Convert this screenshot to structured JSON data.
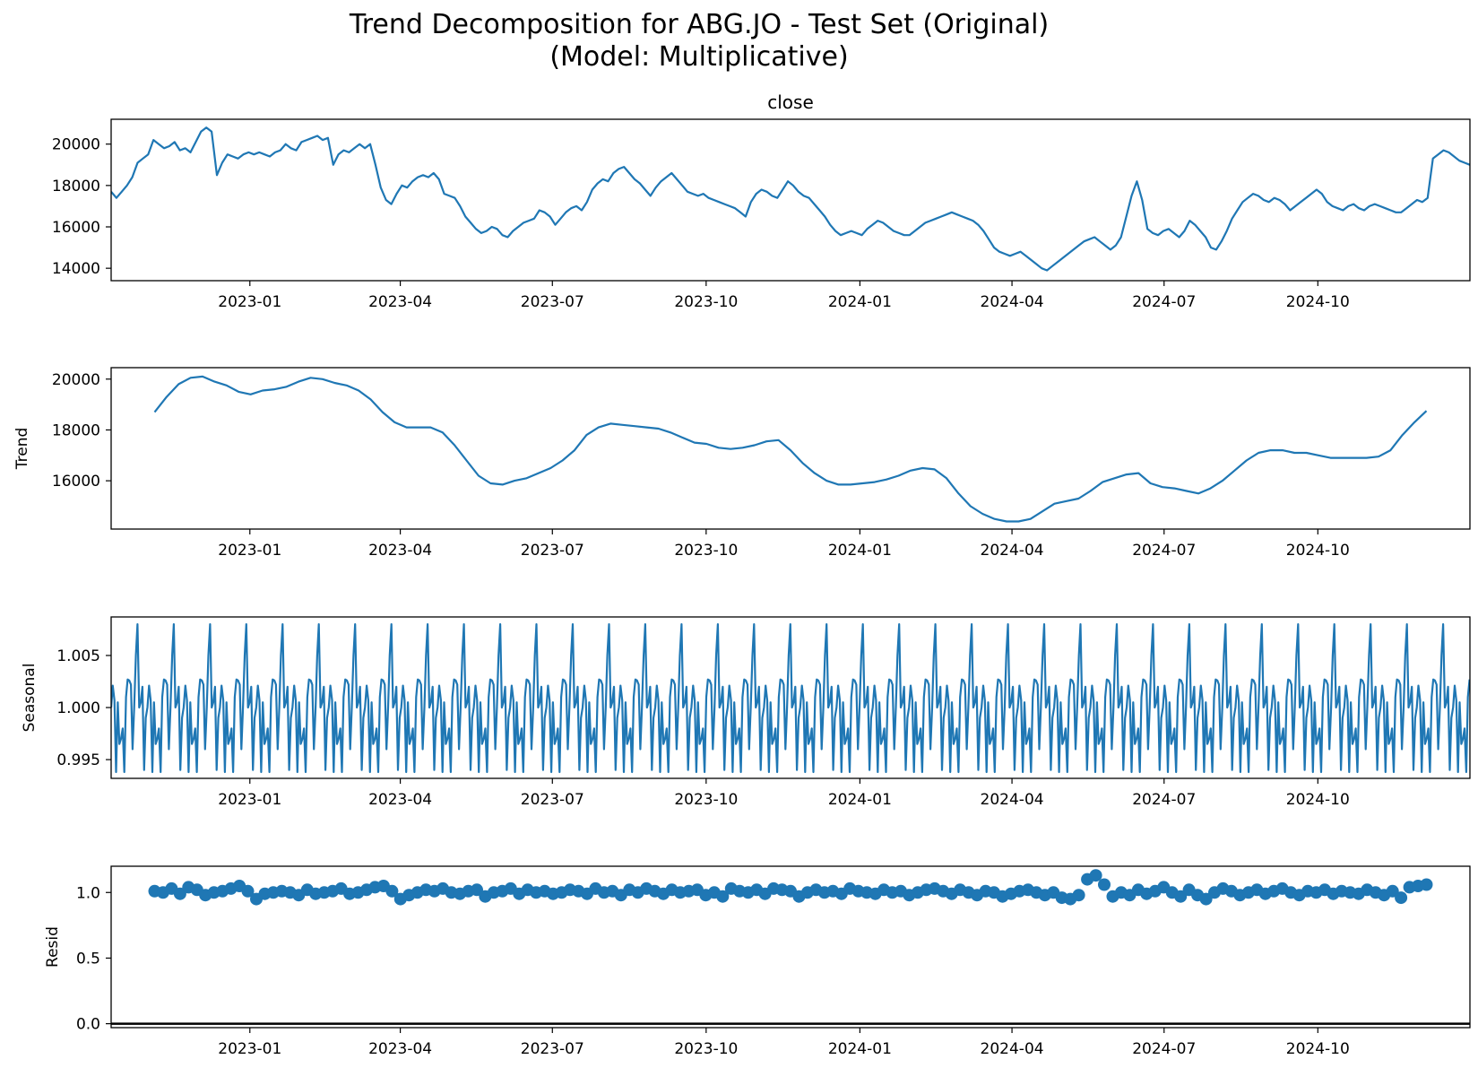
{
  "figure": {
    "title_line1": "Trend Decomposition for ABG.JO - Test Set (Original)",
    "title_line2": "(Model: Multiplicative)"
  },
  "colors": {
    "series": "#1f77b4",
    "axis": "#000000",
    "zero_line": "#000000"
  },
  "chart_data": [
    {
      "type": "line",
      "title": "close",
      "ylabel": "",
      "xlim": [
        "2022-10-10",
        "2024-12-31"
      ],
      "ylim": [
        13400,
        21200
      ],
      "yticks": [
        14000,
        16000,
        18000,
        20000
      ],
      "xticks": [
        "2023-01",
        "2023-04",
        "2023-07",
        "2023-10",
        "2024-01",
        "2024-04",
        "2024-07",
        "2024-10"
      ],
      "series": [
        {
          "x_start": "2022-10-10",
          "x_end": "2024-12-31",
          "values": [
            17700,
            17400,
            17700,
            18000,
            18400,
            19100,
            19300,
            19500,
            20200,
            20000,
            19800,
            19900,
            20100,
            19700,
            19800,
            19600,
            20100,
            20600,
            20800,
            20600,
            18500,
            19100,
            19500,
            19400,
            19300,
            19500,
            19600,
            19500,
            19600,
            19500,
            19400,
            19600,
            19700,
            20000,
            19800,
            19700,
            20100,
            20200,
            20300,
            20400,
            20200,
            20300,
            19000,
            19500,
            19700,
            19600,
            19800,
            20000,
            19800,
            20000,
            19000,
            17900,
            17300,
            17100,
            17600,
            18000,
            17900,
            18200,
            18400,
            18500,
            18400,
            18600,
            18300,
            17600,
            17500,
            17400,
            17000,
            16500,
            16200,
            15900,
            15700,
            15800,
            16000,
            15900,
            15600,
            15500,
            15800,
            16000,
            16200,
            16300,
            16400,
            16800,
            16700,
            16500,
            16100,
            16400,
            16700,
            16900,
            17000,
            16800,
            17200,
            17800,
            18100,
            18300,
            18200,
            18600,
            18800,
            18900,
            18600,
            18300,
            18100,
            17800,
            17500,
            17900,
            18200,
            18400,
            18600,
            18300,
            18000,
            17700,
            17600,
            17500,
            17600,
            17400,
            17300,
            17200,
            17100,
            17000,
            16900,
            16700,
            16500,
            17200,
            17600,
            17800,
            17700,
            17500,
            17400,
            17800,
            18200,
            18000,
            17700,
            17500,
            17400,
            17100,
            16800,
            16500,
            16100,
            15800,
            15600,
            15700,
            15800,
            15700,
            15600,
            15900,
            16100,
            16300,
            16200,
            16000,
            15800,
            15700,
            15600,
            15600,
            15800,
            16000,
            16200,
            16300,
            16400,
            16500,
            16600,
            16700,
            16600,
            16500,
            16400,
            16300,
            16100,
            15800,
            15400,
            15000,
            14800,
            14700,
            14600,
            14700,
            14800,
            14600,
            14400,
            14200,
            14000,
            13900,
            14100,
            14300,
            14500,
            14700,
            14900,
            15100,
            15300,
            15400,
            15500,
            15300,
            15100,
            14900,
            15100,
            15500,
            16500,
            17500,
            18200,
            17300,
            15900,
            15700,
            15600,
            15800,
            15900,
            15700,
            15500,
            15800,
            16300,
            16100,
            15800,
            15500,
            15000,
            14900,
            15300,
            15800,
            16400,
            16800,
            17200,
            17400,
            17600,
            17500,
            17300,
            17200,
            17400,
            17300,
            17100,
            16800,
            17000,
            17200,
            17400,
            17600,
            17800,
            17600,
            17200,
            17000,
            16900,
            16800,
            17000,
            17100,
            16900,
            16800,
            17000,
            17100,
            17000,
            16900,
            16800,
            16700,
            16700,
            16900,
            17100,
            17300,
            17200,
            17400,
            19300,
            19500,
            19700,
            19600,
            19400,
            19200,
            19100,
            19000
          ]
        }
      ]
    },
    {
      "type": "line",
      "title": "",
      "ylabel": "Trend",
      "xlim": [
        "2022-10-10",
        "2024-12-31"
      ],
      "ylim": [
        14100,
        20450
      ],
      "yticks": [
        16000,
        18000,
        20000
      ],
      "xticks": [
        "2023-01",
        "2023-04",
        "2023-07",
        "2023-10",
        "2024-01",
        "2024-04",
        "2024-07",
        "2024-10"
      ],
      "series": [
        {
          "x_start": "2022-11-05",
          "x_end": "2024-12-05",
          "values": [
            18700,
            19300,
            19800,
            20050,
            20100,
            19900,
            19750,
            19500,
            19400,
            19550,
            19600,
            19700,
            19900,
            20050,
            20000,
            19850,
            19750,
            19550,
            19200,
            18700,
            18300,
            18100,
            18100,
            18100,
            17900,
            17400,
            16800,
            16200,
            15900,
            15850,
            16000,
            16100,
            16300,
            16500,
            16800,
            17200,
            17800,
            18100,
            18250,
            18200,
            18150,
            18100,
            18050,
            17900,
            17700,
            17500,
            17450,
            17300,
            17250,
            17300,
            17400,
            17550,
            17600,
            17200,
            16700,
            16300,
            16000,
            15850,
            15850,
            15900,
            15950,
            16050,
            16200,
            16400,
            16500,
            16450,
            16100,
            15500,
            15000,
            14700,
            14500,
            14400,
            14400,
            14500,
            14800,
            15100,
            15200,
            15300,
            15600,
            15950,
            16100,
            16250,
            16300,
            15900,
            15750,
            15700,
            15600,
            15500,
            15700,
            16000,
            16400,
            16800,
            17100,
            17200,
            17200,
            17100,
            17100,
            17000,
            16900,
            16900,
            16900,
            16900,
            16950,
            17200,
            17800,
            18300,
            18750
          ]
        }
      ]
    },
    {
      "type": "line",
      "title": "",
      "ylabel": "Seasonal",
      "xlim": [
        "2022-10-10",
        "2024-12-31"
      ],
      "ylim": [
        0.9932,
        1.0087
      ],
      "yticks": [
        0.995,
        1.0,
        1.005
      ],
      "ytick_labels": [
        "0.995",
        "1.000",
        "1.005"
      ],
      "xticks": [
        "2023-01",
        "2023-04",
        "2023-07",
        "2023-10",
        "2024-01",
        "2024-04",
        "2024-07",
        "2024-10"
      ],
      "period_days": 21.7,
      "pattern": [
        1.0,
        1.0021,
        1.0007,
        0.9938,
        1.0005,
        0.9965,
        0.997,
        0.998,
        0.9938,
        1.001,
        1.0027,
        1.0026,
        1.0022,
        0.996,
        1.0,
        1.005,
        1.008,
        1.0,
        1.0005,
        1.002,
        0.994,
        0.999
      ],
      "series": [
        {
          "x_start": "2022-10-10",
          "x_end": "2024-12-31"
        }
      ]
    },
    {
      "type": "scatter",
      "title": "",
      "ylabel": "Resid",
      "xlim": [
        "2022-10-10",
        "2024-12-31"
      ],
      "ylim": [
        -0.03,
        1.2
      ],
      "yticks": [
        0.0,
        0.5,
        1.0
      ],
      "ytick_labels": [
        "0.0",
        "0.5",
        "1.0"
      ],
      "zero_line": 0,
      "xticks": [
        "2023-01",
        "2023-04",
        "2023-07",
        "2023-10",
        "2024-01",
        "2024-04",
        "2024-07",
        "2024-10"
      ],
      "series": [
        {
          "x_start": "2022-11-05",
          "x_end": "2024-12-05",
          "values": [
            1.01,
            1.0,
            1.03,
            0.99,
            1.04,
            1.02,
            0.98,
            1.0,
            1.01,
            1.03,
            1.05,
            1.01,
            0.95,
            0.99,
            1.0,
            1.01,
            1.0,
            0.98,
            1.02,
            0.99,
            1.0,
            1.01,
            1.03,
            0.99,
            1.0,
            1.02,
            1.04,
            1.05,
            1.01,
            0.95,
            0.98,
            1.0,
            1.02,
            1.01,
            1.03,
            1.0,
            0.99,
            1.01,
            1.02,
            0.97,
            1.0,
            1.01,
            1.03,
            0.99,
            1.02,
            1.0,
            1.01,
            0.99,
            1.0,
            1.02,
            1.01,
            0.99,
            1.03,
            1.0,
            1.01,
            0.98,
            1.02,
            1.0,
            1.03,
            1.01,
            0.99,
            1.02,
            1.0,
            1.01,
            1.02,
            0.98,
            1.0,
            0.97,
            1.03,
            1.01,
            1.0,
            1.02,
            0.99,
            1.03,
            1.02,
            1.01,
            0.97,
            1.0,
            1.02,
            1.0,
            1.01,
            0.99,
            1.03,
            1.01,
            1.0,
            0.99,
            1.02,
            1.0,
            1.01,
            0.98,
            1.0,
            1.02,
            1.03,
            1.01,
            0.99,
            1.02,
            1.0,
            0.98,
            1.01,
            1.0,
            0.97,
            0.99,
            1.01,
            1.02,
            1.0,
            0.98,
            1.0,
            0.96,
            0.95,
            0.98,
            1.1,
            1.13,
            1.06,
            0.97,
            1.0,
            0.98,
            1.02,
            0.99,
            1.01,
            1.04,
            1.0,
            0.97,
            1.02,
            0.98,
            0.95,
            1.0,
            1.03,
            1.01,
            0.98,
            1.0,
            1.02,
            0.99,
            1.01,
            1.03,
            1.0,
            0.98,
            1.01,
            1.0,
            1.02,
            0.99,
            1.01,
            1.0,
            0.99,
            1.02,
            1.0,
            0.98,
            1.01,
            0.96,
            1.04,
            1.05,
            1.06
          ]
        }
      ]
    }
  ]
}
